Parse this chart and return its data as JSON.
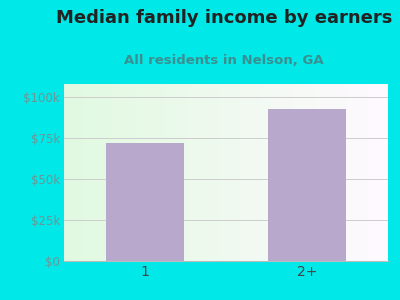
{
  "title": "Median family income by earners",
  "subtitle": "All residents in Nelson, GA",
  "categories": [
    "1",
    "2+"
  ],
  "values": [
    72000,
    93000
  ],
  "bar_color": "#b8a8cc",
  "outer_bg": "#00e8e8",
  "title_color": "#222222",
  "subtitle_color": "#3a9a8a",
  "yaxis_color": "#5aааaa",
  "yticks": [
    0,
    25000,
    50000,
    75000,
    100000
  ],
  "ytick_labels": [
    "$0",
    "$25k",
    "$50k",
    "$75k",
    "$100k"
  ],
  "ylim": [
    0,
    108000
  ],
  "title_fontsize": 13,
  "subtitle_fontsize": 9.5
}
